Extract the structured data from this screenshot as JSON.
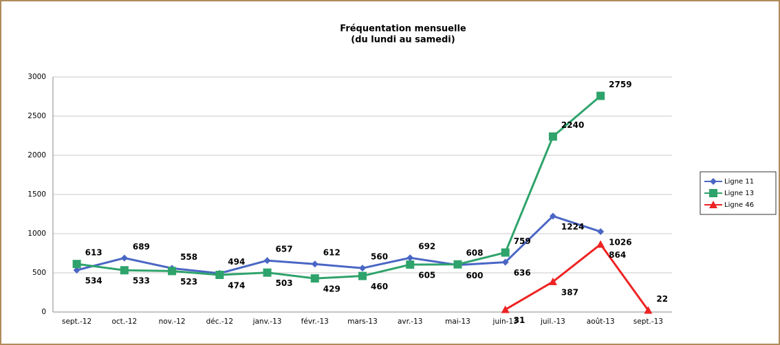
{
  "chart_data": {
    "type": "line",
    "title": "Fréquentation mensuelle",
    "subtitle": "(du lundi au samedi)",
    "categories": [
      "sept.-12",
      "oct.-12",
      "nov.-12",
      "déc.-12",
      "janv.-13",
      "févr.-13",
      "mars-13",
      "avr.-13",
      "mai-13",
      "juin-13",
      "juil.-13",
      "août-13",
      "sept.-13"
    ],
    "series": [
      {
        "name": "Ligne 11",
        "color": "#4a66c4",
        "marker": "diamond",
        "values": [
          534,
          689,
          558,
          494,
          657,
          612,
          560,
          692,
          600,
          636,
          1224,
          1026,
          null
        ]
      },
      {
        "name": "Ligne 13",
        "color": "#2ea36b",
        "marker": "square",
        "values": [
          613,
          533,
          523,
          474,
          503,
          429,
          460,
          605,
          608,
          759,
          2240,
          2759,
          null
        ]
      },
      {
        "name": "Ligne 46",
        "color": "#ee2222",
        "marker": "triangle",
        "values": [
          null,
          null,
          null,
          null,
          null,
          null,
          null,
          null,
          null,
          31,
          387,
          864,
          22
        ]
      }
    ],
    "ylim": [
      0,
      3000
    ],
    "yticks": [
      0,
      500,
      1000,
      1500,
      2000,
      2500,
      3000
    ],
    "grid": true,
    "legend": "right"
  }
}
